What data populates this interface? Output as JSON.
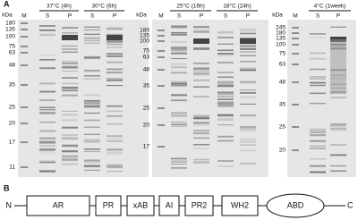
{
  "panel_a": {
    "label": "A",
    "gels": [
      {
        "unit": "kDa",
        "markers": [
          180,
          135,
          100,
          75,
          63,
          48,
          35,
          25,
          20,
          17,
          11
        ],
        "lanes": [
          "M",
          "S",
          "P",
          "S",
          "P"
        ],
        "conditions": [
          "37°C (4h)",
          "30°C (6h)"
        ]
      },
      {
        "unit": "kDa",
        "markers": [
          180,
          135,
          100,
          75,
          63,
          48,
          35,
          25,
          20,
          17
        ],
        "lanes": [
          "M",
          "S",
          "P",
          "S",
          "P"
        ],
        "conditions": [
          "25°C (16h)",
          "18°C (24h)"
        ]
      },
      {
        "unit": "kDa",
        "markers": [
          245,
          180,
          135,
          100,
          75,
          63,
          48,
          35,
          25,
          20
        ],
        "lanes": [
          "M",
          "S",
          "P"
        ],
        "conditions": [
          "4°C (1week)"
        ]
      }
    ]
  },
  "panel_b": {
    "label": "B",
    "n_terminus": "N",
    "c_terminus": "C",
    "domains": [
      "AR",
      "PR",
      "xAB",
      "AI",
      "PR2",
      "WH2",
      "ABD"
    ]
  }
}
